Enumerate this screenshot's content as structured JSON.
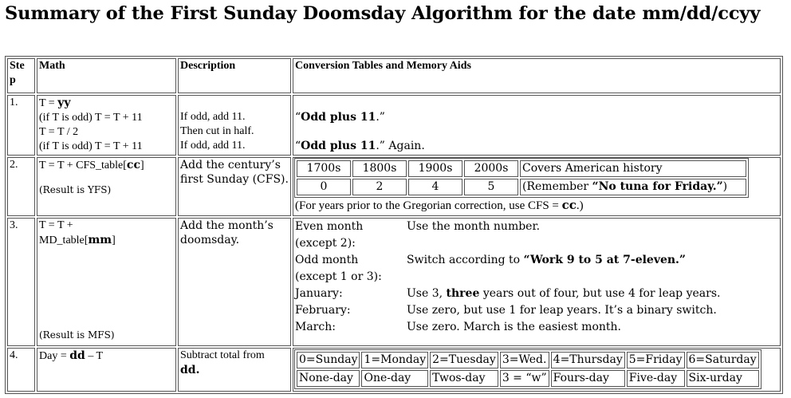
{
  "title": "Summary of the First Sunday Doomsday Algorithm for the date mm/dd/ccyy",
  "headers": {
    "step": "Ste p",
    "math": "Math",
    "description": "Description",
    "tables": "Conversion Tables and Memory Aids"
  },
  "step1": {
    "num": "1.",
    "math": [
      "T = ",
      "yy",
      "(if T is odd) T = T + 11",
      "T = T / 2",
      "(if T is odd) T = T + 11"
    ],
    "desc": [
      "If odd, add 11.",
      "Then cut in half.",
      "If odd, add 11."
    ],
    "aid1_q1": "“",
    "aid1_bold": "Odd plus 11",
    "aid1_q2": ".”",
    "aid2_q1": "“",
    "aid2_bold": "Odd plus 11",
    "aid2_q2": ".” Again."
  },
  "step2": {
    "num": "2.",
    "math_pre": "T = T + CFS_table[",
    "math_bold": "cc",
    "math_post": "]",
    "result": "(Result is YFS)",
    "desc": [
      "Add the century’s",
      "first Sunday (CFS)."
    ],
    "centuries": [
      "1700s",
      "1800s",
      "1900s",
      "2000s"
    ],
    "values": [
      "0",
      "2",
      "4",
      "5"
    ],
    "note1": "Covers American history",
    "note2_pre": "(Remember ",
    "note2_bold": "“No tuna for Friday.”",
    "note2_post": ")",
    "footer_pre": "(For years prior to the Gregorian correction, use CFS = ",
    "footer_bold": "cc",
    "footer_post": ".)"
  },
  "step3": {
    "num": "3.",
    "math_l1": "T = T +",
    "math_pre": "MD_table[",
    "math_bold": "mm",
    "math_post": "]",
    "result": "(Result is MFS)",
    "desc": [
      "Add the month’s",
      "doomsday."
    ],
    "rows": [
      {
        "label1": "Even month",
        "label2": "(except 2):",
        "text": "Use the month number."
      },
      {
        "label1": "Odd month",
        "label2": "(except 1 or 3):",
        "text_pre": "Switch according to ",
        "text_bold": "“Work 9 to 5 at 7-eleven.”"
      },
      {
        "label1": "January:",
        "text_pre": "Use 3, ",
        "text_bold": "three",
        "text_post": " years out of four, but use 4 for leap years."
      },
      {
        "label1": "February:",
        "text": "Use zero, but use 1 for leap years. It’s a binary switch."
      },
      {
        "label1": "March:",
        "text": "Use zero. March is the easiest month."
      }
    ]
  },
  "step4": {
    "num": "4.",
    "math_pre": "Day = ",
    "math_bold": "dd",
    "math_post": " – T",
    "desc_l1": "Subtract total from",
    "desc_bold": "dd.",
    "days": [
      "0=Sunday",
      "1=Monday",
      "2=Tuesday",
      "3=Wed.",
      "4=Thursday",
      "5=Friday",
      "6=Saturday"
    ],
    "aids": [
      "None-day",
      "One-day",
      "Twos-day",
      "3 = “w”",
      "Fours-day",
      "Five-day",
      "Six-urday"
    ]
  }
}
